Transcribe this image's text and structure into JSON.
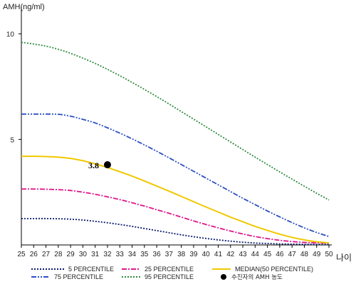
{
  "chart_data": {
    "type": "line",
    "ylabel": "AMH(ng/ml)",
    "xlabel": "나이",
    "x": [
      25,
      26,
      27,
      28,
      29,
      30,
      31,
      32,
      33,
      34,
      35,
      36,
      37,
      38,
      39,
      40,
      41,
      42,
      43,
      44,
      45,
      46,
      47,
      48,
      49,
      50
    ],
    "ylim": [
      0,
      11
    ],
    "yticks": [
      5,
      10
    ],
    "grid": false,
    "legend_position": "bottom",
    "series": [
      {
        "name": "5 PERCENTILE",
        "color": "#0a1a6b",
        "style": "dotted",
        "values": [
          1.25,
          1.25,
          1.25,
          1.24,
          1.22,
          1.18,
          1.12,
          1.05,
          0.97,
          0.88,
          0.78,
          0.68,
          0.58,
          0.48,
          0.39,
          0.31,
          0.24,
          0.18,
          0.13,
          0.09,
          0.07,
          0.05,
          0.04,
          0.03,
          0.03,
          0.03
        ]
      },
      {
        "name": "25 PERCENTILE",
        "color": "#e0158a",
        "style": "dashdot",
        "values": [
          2.65,
          2.65,
          2.64,
          2.62,
          2.58,
          2.5,
          2.4,
          2.28,
          2.15,
          2.0,
          1.84,
          1.67,
          1.5,
          1.32,
          1.14,
          0.97,
          0.81,
          0.66,
          0.52,
          0.4,
          0.3,
          0.22,
          0.16,
          0.12,
          0.1,
          0.09
        ]
      },
      {
        "name": "MEDIAN(50 PERCENTILE)",
        "color": "#f0c800",
        "style": "solid",
        "values": [
          4.2,
          4.2,
          4.19,
          4.16,
          4.1,
          3.99,
          3.84,
          3.67,
          3.47,
          3.26,
          3.03,
          2.79,
          2.55,
          2.3,
          2.05,
          1.8,
          1.56,
          1.32,
          1.1,
          0.88,
          0.69,
          0.51,
          0.36,
          0.24,
          0.15,
          0.1
        ]
      },
      {
        "name": "75 PERCENTILE",
        "color": "#2c4fc0",
        "style": "dashdotdot",
        "values": [
          6.2,
          6.2,
          6.2,
          6.19,
          6.1,
          5.95,
          5.78,
          5.55,
          5.3,
          5.03,
          4.74,
          4.44,
          4.13,
          3.81,
          3.49,
          3.17,
          2.85,
          2.53,
          2.21,
          1.91,
          1.61,
          1.33,
          1.06,
          0.81,
          0.59,
          0.4
        ]
      },
      {
        "name": "95 PERCENTILE",
        "color": "#2e8b3e",
        "style": "dotted",
        "values": [
          9.6,
          9.52,
          9.42,
          9.27,
          9.08,
          8.85,
          8.6,
          8.32,
          8.02,
          7.7,
          7.37,
          7.03,
          6.68,
          6.32,
          5.96,
          5.6,
          5.24,
          4.88,
          4.52,
          4.16,
          3.81,
          3.46,
          3.12,
          2.78,
          2.45,
          2.13
        ]
      }
    ],
    "marker": {
      "name": "수진자의 AMH 농도",
      "x": 32,
      "y": 3.8,
      "label": "3.8",
      "color": "#000000"
    }
  }
}
